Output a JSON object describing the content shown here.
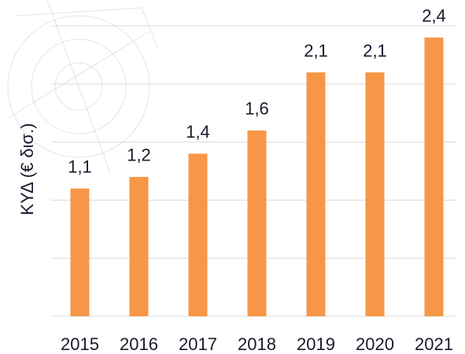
{
  "chart_data": {
    "type": "bar",
    "y_label": "ΚΥΔ (€ δισ.)",
    "categories": [
      "2015",
      "2016",
      "2017",
      "2018",
      "2019",
      "2020",
      "2021"
    ],
    "values": [
      1.1,
      1.2,
      1.4,
      1.6,
      2.1,
      2.1,
      2.4
    ],
    "value_labels": [
      "1,1",
      "1,2",
      "1,4",
      "1,6",
      "2,1",
      "2,1",
      "2,4"
    ],
    "color": "#f79646",
    "ylim": [
      0,
      2.5
    ],
    "yticks": [
      0,
      0.5,
      1,
      1.5,
      2,
      2.5
    ],
    "grid": true
  }
}
